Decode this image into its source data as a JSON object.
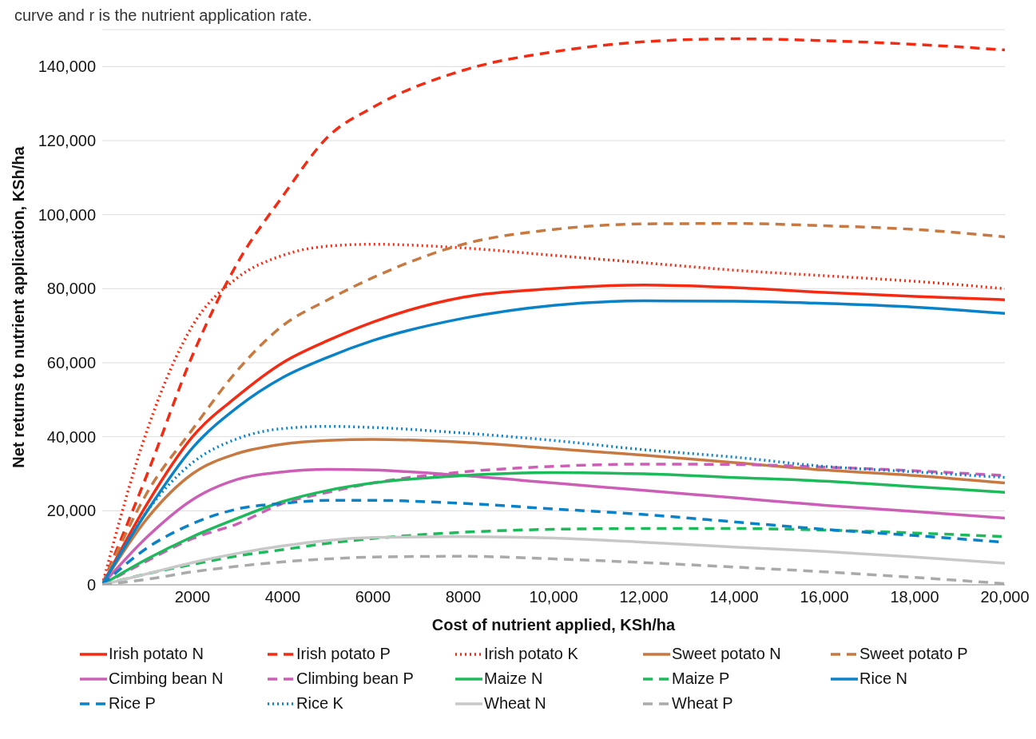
{
  "chart_data": {
    "type": "line",
    "annotations": [
      "curve and r is the nutrient application rate."
    ],
    "xlabel": "Cost of nutrient applied, KSh/ha",
    "ylabel": "Net returns to nutrient application, KSh/ha",
    "x": [
      0,
      1000,
      2000,
      3000,
      4000,
      5000,
      6000,
      8000,
      10000,
      12000,
      14000,
      16000,
      18000,
      20000
    ],
    "xlim": [
      0,
      20000
    ],
    "xticks": [
      2000,
      4000,
      6000,
      8000,
      {
        "value": 10000,
        "label": "10,000"
      },
      {
        "value": 12000,
        "label": "12,000"
      },
      {
        "value": 14000,
        "label": "14,000"
      },
      {
        "value": 16000,
        "label": "16,000"
      },
      {
        "value": 18000,
        "label": "18,000"
      },
      {
        "value": 20000,
        "label": "20,000"
      }
    ],
    "ylim": [
      0,
      150000
    ],
    "yticks": [
      0,
      {
        "value": 20000,
        "label": "20,000"
      },
      {
        "value": 40000,
        "label": "40,000"
      },
      {
        "value": 60000,
        "label": "60,000"
      },
      {
        "value": 80000,
        "label": "80,000"
      },
      {
        "value": 100000,
        "label": "100,000"
      },
      {
        "value": 120000,
        "label": "120,000"
      },
      {
        "value": 140000,
        "label": "140,000"
      }
    ],
    "grid": "y",
    "legend": "bottom",
    "marker": "none",
    "series": [
      {
        "name": "Irish potato N",
        "color": "#f42a12",
        "line_style": "solid",
        "values": [
          0,
          22000,
          40000,
          51000,
          60000,
          66000,
          71000,
          77700,
          80000,
          81000,
          80300,
          79000,
          77900,
          77000
        ]
      },
      {
        "name": "Irish potato P",
        "color": "#f42a12",
        "line_style": "dashed",
        "values": [
          0,
          30000,
          62000,
          87000,
          105000,
          121000,
          129000,
          139000,
          144000,
          146700,
          147500,
          147000,
          146000,
          144500
        ]
      },
      {
        "name": "Irish potato K",
        "color": "#f42a12",
        "line_style": "dotted",
        "values": [
          0,
          42000,
          70000,
          83000,
          89000,
          91500,
          92000,
          91000,
          89000,
          87000,
          85000,
          83500,
          82000,
          80000
        ]
      },
      {
        "name": "Sweet potato N",
        "color": "#c87941",
        "line_style": "solid",
        "values": [
          0,
          18000,
          30000,
          35500,
          38000,
          39000,
          39300,
          38500,
          36800,
          35000,
          33000,
          31000,
          29500,
          27500
        ]
      },
      {
        "name": "Sweet potato P",
        "color": "#c87941",
        "line_style": "dashed",
        "values": [
          0,
          25000,
          42000,
          58000,
          70000,
          77000,
          83000,
          92000,
          96000,
          97500,
          97600,
          97000,
          96000,
          94000
        ]
      },
      {
        "name": "Cimbing bean N",
        "color": "#cc5fb5",
        "line_style": "solid",
        "values": [
          0,
          13000,
          23000,
          28500,
          30500,
          31200,
          31000,
          29500,
          27500,
          25500,
          23500,
          21500,
          19800,
          18000
        ]
      },
      {
        "name": "Climbing bean P",
        "color": "#cc5fb5",
        "line_style": "dashed",
        "values": [
          0,
          6500,
          12500,
          16500,
          22000,
          25000,
          27500,
          30500,
          32000,
          32600,
          32500,
          31800,
          30800,
          29500
        ]
      },
      {
        "name": "Maize N",
        "color": "#1dba5b",
        "line_style": "solid",
        "values": [
          0,
          7000,
          13000,
          18000,
          22500,
          25500,
          27500,
          29500,
          30300,
          30000,
          29000,
          28000,
          26500,
          25000
        ]
      },
      {
        "name": "Maize P",
        "color": "#1dba5b",
        "line_style": "dashed",
        "values": [
          0,
          3000,
          5500,
          7800,
          9500,
          11200,
          12500,
          14200,
          15000,
          15200,
          15200,
          14800,
          14000,
          13000
        ]
      },
      {
        "name": "Rice N",
        "color": "#0a82c8",
        "line_style": "solid",
        "values": [
          0,
          20000,
          37000,
          48000,
          56000,
          61500,
          66000,
          72000,
          75500,
          76700,
          76600,
          76000,
          75000,
          73300
        ]
      },
      {
        "name": "Rice P",
        "color": "#0a82c8",
        "line_style": "dashed",
        "values": [
          0,
          10000,
          16500,
          20500,
          22000,
          22800,
          22800,
          22000,
          20500,
          19000,
          17000,
          15000,
          13300,
          11500
        ]
      },
      {
        "name": "Rice K",
        "color": "#0a82c8",
        "line_style": "dotted",
        "values": [
          0,
          20000,
          33000,
          39500,
          42200,
          42800,
          42500,
          41000,
          39000,
          36500,
          34500,
          32000,
          30500,
          29000
        ]
      },
      {
        "name": "Wheat N",
        "color": "#c8c8c8",
        "line_style": "solid",
        "values": [
          0,
          3000,
          6000,
          8500,
          10500,
          12000,
          12800,
          13000,
          12600,
          11500,
          10200,
          9000,
          7500,
          5800
        ]
      },
      {
        "name": "Wheat P",
        "color": "#aaaaaa",
        "line_style": "dashed",
        "values": [
          0,
          1500,
          3500,
          5000,
          6200,
          7000,
          7500,
          7700,
          7000,
          6000,
          4800,
          3500,
          2000,
          300
        ]
      }
    ]
  }
}
